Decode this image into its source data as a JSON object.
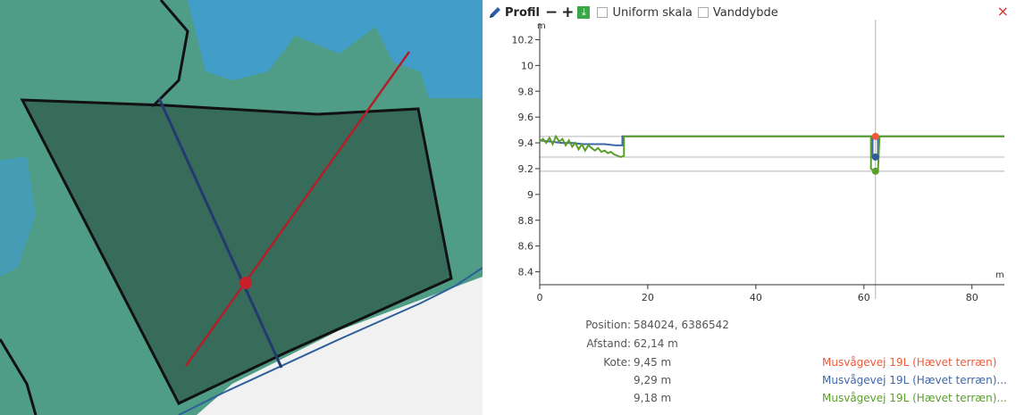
{
  "toolbar": {
    "title": "Profil",
    "minus": "−",
    "plus": "+",
    "download_glyph": "⤓",
    "uniform_label": "Uniform skala",
    "vanddybde_label": "Vanddybde",
    "close": "×"
  },
  "chart_data": {
    "type": "line",
    "ylabel": "m",
    "xlabel": "m",
    "xlim": [
      0,
      86
    ],
    "ylim": [
      8.3,
      10.3
    ],
    "x_ticks": [
      "0",
      "20",
      "40",
      "60",
      "80"
    ],
    "y_ticks": [
      "10.2",
      "10",
      "9.8",
      "9.6",
      "9.4",
      "9.2",
      "9",
      "8.8",
      "8.6",
      "8.4"
    ],
    "cursor_x": 62.14,
    "reference_lines_y": [
      9.45,
      9.29,
      9.18
    ],
    "series": [
      {
        "color": "#3f67a8",
        "points": [
          [
            0,
            9.42
          ],
          [
            2,
            9.41
          ],
          [
            4,
            9.4
          ],
          [
            6,
            9.4
          ],
          [
            8,
            9.39
          ],
          [
            10,
            9.39
          ],
          [
            12,
            9.39
          ],
          [
            14,
            9.38
          ],
          [
            15.3,
            9.38
          ],
          [
            15.3,
            9.45
          ],
          [
            20,
            9.45
          ],
          [
            40,
            9.45
          ],
          [
            61.6,
            9.45
          ],
          [
            61.6,
            9.29
          ],
          [
            62.6,
            9.29
          ],
          [
            62.6,
            9.45
          ],
          [
            86,
            9.45
          ]
        ]
      },
      {
        "color": "#5a9e2a",
        "points": [
          [
            0,
            9.41
          ],
          [
            0.6,
            9.43
          ],
          [
            1.2,
            9.4
          ],
          [
            1.8,
            9.44
          ],
          [
            2.4,
            9.39
          ],
          [
            3,
            9.45
          ],
          [
            3.6,
            9.41
          ],
          [
            4.2,
            9.43
          ],
          [
            4.8,
            9.38
          ],
          [
            5.4,
            9.42
          ],
          [
            6,
            9.37
          ],
          [
            6.6,
            9.4
          ],
          [
            7.2,
            9.35
          ],
          [
            7.8,
            9.39
          ],
          [
            8.4,
            9.34
          ],
          [
            9,
            9.38
          ],
          [
            9.6,
            9.36
          ],
          [
            10.2,
            9.34
          ],
          [
            10.8,
            9.36
          ],
          [
            11.4,
            9.33
          ],
          [
            12,
            9.34
          ],
          [
            12.6,
            9.32
          ],
          [
            13.2,
            9.33
          ],
          [
            13.8,
            9.31
          ],
          [
            14.4,
            9.3
          ],
          [
            15,
            9.29
          ],
          [
            15.6,
            9.3
          ],
          [
            15.6,
            9.45
          ],
          [
            20,
            9.45
          ],
          [
            40,
            9.45
          ],
          [
            61.3,
            9.45
          ],
          [
            61.3,
            9.2
          ],
          [
            61.8,
            9.18
          ],
          [
            62.6,
            9.18
          ],
          [
            62.9,
            9.45
          ],
          [
            86,
            9.45
          ]
        ]
      }
    ],
    "markers": [
      {
        "x": 62.14,
        "y": 9.45,
        "color": "#f05a3a"
      },
      {
        "x": 62.14,
        "y": 9.29,
        "color": "#2f5c97"
      },
      {
        "x": 62.14,
        "y": 9.18,
        "color": "#58a030"
      }
    ]
  },
  "info": {
    "position_label": "Position:",
    "position_value": "584024, 6386542",
    "afstand_label": "Afstand:",
    "afstand_value": "62,14 m",
    "kote_label": "Kote:",
    "kote_values": [
      "9,45 m",
      "9,29 m",
      "9,18 m"
    ],
    "legend": [
      {
        "text": "Musvågevej 19L (Hævet terræn)",
        "color": "#f05a3a"
      },
      {
        "text": "Musvågevej 19L (Hævet terræn)...",
        "color": "#3f67a8"
      },
      {
        "text": "Musvågevej 19L (Hævet terræn)...",
        "color": "#5a9e2a"
      }
    ]
  },
  "map": {
    "colors": {
      "terrain": "#4e9a86",
      "water": "#3fa0d8",
      "polygon_fill": "#2f5a4a",
      "profile_line": "#b21f2a",
      "cursor_point": "#c6202a"
    }
  }
}
